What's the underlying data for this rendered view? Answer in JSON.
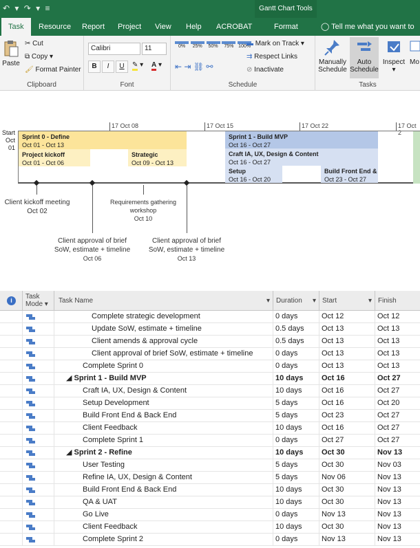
{
  "title_bar": {
    "qat": "↶ ▾ ↷ ▾ ≡",
    "context_title": "Gantt Chart Tools"
  },
  "tabs": [
    {
      "label": "Task",
      "active": true
    },
    {
      "label": "Resource"
    },
    {
      "label": "Report"
    },
    {
      "label": "Project"
    },
    {
      "label": "View"
    },
    {
      "label": "Help"
    },
    {
      "label": "ACROBAT"
    },
    {
      "label": "Format"
    }
  ],
  "tell_me": "Tell me what you want to do",
  "ribbon": {
    "clipboard": {
      "label": "Clipboard",
      "paste": "Paste",
      "cut": "Cut",
      "copy": "Copy",
      "format_painter": "Format Painter"
    },
    "font": {
      "label": "Font",
      "name": "Calibri",
      "size": "11",
      "bold": "B",
      "italic": "I",
      "underline": "U"
    },
    "schedule": {
      "label": "Schedule",
      "mark_on_track": "Mark on Track",
      "respect_links": "Respect Links",
      "inactivate": "Inactivate",
      "pct": [
        "0%",
        "25%",
        "50%",
        "75%",
        "100%"
      ]
    },
    "tasks": {
      "label": "Tasks",
      "manually": "Manually",
      "schedule": "Schedule",
      "auto": "Auto",
      "inspect": "Inspect",
      "more": "Mo"
    }
  },
  "timeline": {
    "start_label": "Start",
    "start_date": "Oct 01",
    "dates": [
      "17 Oct 08",
      "17 Oct 15",
      "17 Oct 22",
      "17 Oct 2"
    ],
    "bars": [
      {
        "name": "Sprint 0 - Define",
        "dates": "Oct 01 - Oct 13"
      },
      {
        "name": "Project kickoff",
        "dates": "Oct 01 - Oct 06"
      },
      {
        "name": "Strategic",
        "dates": "Oct 09 - Oct 13"
      },
      {
        "name": "Sprint 1 - Build MVP",
        "dates": "Oct 16 - Oct 27"
      },
      {
        "name": "Craft IA, UX, Design & Content",
        "dates": "Oct 16 - Oct 27"
      },
      {
        "name": "Setup",
        "dates": "Oct 16 - Oct 20"
      },
      {
        "name": "Build Front End &",
        "dates": "Oct 23 - Oct 27"
      }
    ],
    "milestones": [
      {
        "l1": "Client kickoff meeting",
        "l2": "",
        "l3": "Oct 02"
      },
      {
        "l1": "Requirements gathering",
        "l2": "workshop",
        "l3": "Oct 10"
      },
      {
        "l1": "Client approval of brief",
        "l2": "SoW, estimate + timeline",
        "l3": "Oct 06"
      },
      {
        "l1": "Client approval of brief",
        "l2": "SoW, estimate + timeline",
        "l3": "Oct 13"
      }
    ]
  },
  "grid": {
    "headers": {
      "info": "i",
      "mode1": "Task",
      "mode2": "Mode",
      "name": "Task Name",
      "duration": "Duration",
      "start": "Start",
      "finish": "Finish"
    },
    "rows": [
      {
        "name": "Complete strategic development",
        "duration": "0 days",
        "start": "Oct 12",
        "finish": "Oct 12",
        "indent": 3,
        "bold": false
      },
      {
        "name": "Update SoW, estimate + timeline",
        "duration": "0.5 days",
        "start": "Oct 13",
        "finish": "Oct 13",
        "indent": 3,
        "bold": false
      },
      {
        "name": "Client amends & approval cycle",
        "duration": "0.5 days",
        "start": "Oct 13",
        "finish": "Oct 13",
        "indent": 3,
        "bold": false
      },
      {
        "name": "Client approval of brief SoW, estimate + timeline",
        "duration": "0 days",
        "start": "Oct 13",
        "finish": "Oct 13",
        "indent": 3,
        "bold": false
      },
      {
        "name": "Complete Sprint 0",
        "duration": "0 days",
        "start": "Oct 13",
        "finish": "Oct 13",
        "indent": 2,
        "bold": false
      },
      {
        "name": "◢ Sprint 1 - Build MVP",
        "duration": "10 days",
        "start": "Oct 16",
        "finish": "Oct 27",
        "indent": 1,
        "bold": true
      },
      {
        "name": "Craft IA, UX, Design & Content",
        "duration": "10 days",
        "start": "Oct 16",
        "finish": "Oct 27",
        "indent": 2,
        "bold": false
      },
      {
        "name": "Setup Development",
        "duration": "5 days",
        "start": "Oct 16",
        "finish": "Oct 20",
        "indent": 2,
        "bold": false
      },
      {
        "name": "Build Front End & Back End",
        "duration": "5 days",
        "start": "Oct 23",
        "finish": "Oct 27",
        "indent": 2,
        "bold": false
      },
      {
        "name": "Client Feedback",
        "duration": "10 days",
        "start": "Oct 16",
        "finish": "Oct 27",
        "indent": 2,
        "bold": false
      },
      {
        "name": "Complete Sprint 1",
        "duration": "0 days",
        "start": "Oct 27",
        "finish": "Oct 27",
        "indent": 2,
        "bold": false
      },
      {
        "name": "◢ Sprint 2 - Refine",
        "duration": "10 days",
        "start": "Oct 30",
        "finish": "Nov 13",
        "indent": 1,
        "bold": true
      },
      {
        "name": "User Testing",
        "duration": "5 days",
        "start": "Oct 30",
        "finish": "Nov 03",
        "indent": 2,
        "bold": false
      },
      {
        "name": "Refine IA, UX, Design & Content",
        "duration": "5 days",
        "start": "Nov 06",
        "finish": "Nov 13",
        "indent": 2,
        "bold": false
      },
      {
        "name": "Build Front End & Back End",
        "duration": "10 days",
        "start": "Oct 30",
        "finish": "Nov 13",
        "indent": 2,
        "bold": false
      },
      {
        "name": "QA & UAT",
        "duration": "10 days",
        "start": "Oct 30",
        "finish": "Nov 13",
        "indent": 2,
        "bold": false
      },
      {
        "name": "Go Live",
        "duration": "0 days",
        "start": "Nov 13",
        "finish": "Nov 13",
        "indent": 2,
        "bold": false
      },
      {
        "name": "Client Feedback",
        "duration": "10 days",
        "start": "Oct 30",
        "finish": "Nov 13",
        "indent": 2,
        "bold": false
      },
      {
        "name": "Complete Sprint 2",
        "duration": "0 days",
        "start": "Nov 13",
        "finish": "Nov 13",
        "indent": 2,
        "bold": false
      }
    ]
  },
  "colors": {
    "accent": "#217346",
    "sprint0": "#fce49a",
    "sprint0_sub": "#fdf0c2",
    "sprint1": "#b4c7e7",
    "sprint1_sub": "#d6e0f2",
    "mode_icon": "#4a7cc7"
  }
}
